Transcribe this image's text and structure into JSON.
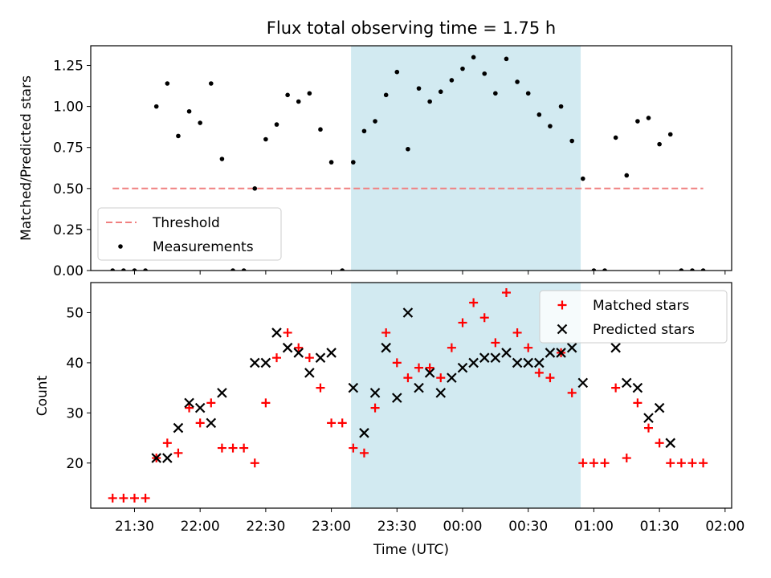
{
  "figure_title": "Flux total observing time = 1.75 h",
  "colors": {
    "shade": "#add8e6",
    "threshold": "#f08080",
    "measure": "#000000",
    "matched": "#ff0000",
    "predicted": "#000000"
  },
  "chart_data": [
    {
      "type": "scatter",
      "title": "Flux total observing time = 1.75 h",
      "xlabel": "",
      "ylabel": "Matched/Predicted stars",
      "ylim": [
        0,
        1.37
      ],
      "xlim": [
        "21:10",
        "02:03"
      ],
      "shaded_interval": [
        "23:09",
        "00:54"
      ],
      "yticks": [
        "0.00",
        "0.25",
        "0.50",
        "0.75",
        "1.00",
        "1.25"
      ],
      "threshold": {
        "name": "Threshold",
        "value": 0.5,
        "x_range": [
          "21:20",
          "01:50"
        ]
      },
      "legend": {
        "position": "lower-left",
        "entries": [
          "Threshold",
          "Measurements"
        ]
      },
      "series": [
        {
          "name": "Measurements",
          "points": [
            [
              "21:20",
              0
            ],
            [
              "21:25",
              0
            ],
            [
              "21:30",
              0
            ],
            [
              "21:35",
              0
            ],
            [
              "21:40",
              1.0
            ],
            [
              "21:45",
              1.14
            ],
            [
              "21:50",
              0.82
            ],
            [
              "21:55",
              0.97
            ],
            [
              "22:00",
              0.9
            ],
            [
              "22:05",
              1.14
            ],
            [
              "22:10",
              0.68
            ],
            [
              "22:15",
              0
            ],
            [
              "22:20",
              0
            ],
            [
              "22:25",
              0.5
            ],
            [
              "22:30",
              0.8
            ],
            [
              "22:35",
              0.89
            ],
            [
              "22:40",
              1.07
            ],
            [
              "22:45",
              1.03
            ],
            [
              "22:50",
              1.08
            ],
            [
              "22:55",
              0.86
            ],
            [
              "23:00",
              0.66
            ],
            [
              "23:05",
              0
            ],
            [
              "23:10",
              0.66
            ],
            [
              "23:15",
              0.85
            ],
            [
              "23:20",
              0.91
            ],
            [
              "23:25",
              1.07
            ],
            [
              "23:30",
              1.21
            ],
            [
              "23:35",
              0.74
            ],
            [
              "23:40",
              1.11
            ],
            [
              "23:45",
              1.03
            ],
            [
              "23:50",
              1.09
            ],
            [
              "23:55",
              1.16
            ],
            [
              "00:00",
              1.23
            ],
            [
              "00:05",
              1.3
            ],
            [
              "00:10",
              1.2
            ],
            [
              "00:15",
              1.08
            ],
            [
              "00:20",
              1.29
            ],
            [
              "00:25",
              1.15
            ],
            [
              "00:30",
              1.08
            ],
            [
              "00:35",
              0.95
            ],
            [
              "00:40",
              0.88
            ],
            [
              "00:45",
              1.0
            ],
            [
              "00:50",
              0.79
            ],
            [
              "00:55",
              0.56
            ],
            [
              "01:00",
              0
            ],
            [
              "01:05",
              0
            ],
            [
              "01:10",
              0.81
            ],
            [
              "01:15",
              0.58
            ],
            [
              "01:20",
              0.91
            ],
            [
              "01:25",
              0.93
            ],
            [
              "01:30",
              0.77
            ],
            [
              "01:35",
              0.83
            ],
            [
              "01:40",
              0
            ],
            [
              "01:45",
              0
            ],
            [
              "01:50",
              0
            ]
          ]
        }
      ]
    },
    {
      "type": "scatter",
      "xlabel": "Time (UTC)",
      "ylabel": "Count",
      "ylim": [
        11,
        56
      ],
      "xlim": [
        "21:10",
        "02:03"
      ],
      "shaded_interval": [
        "23:09",
        "00:54"
      ],
      "yticks": [
        "20",
        "30",
        "40",
        "50"
      ],
      "xticks": [
        "21:30",
        "22:00",
        "22:30",
        "23:00",
        "23:30",
        "00:00",
        "00:30",
        "01:00",
        "01:30",
        "02:00"
      ],
      "legend": {
        "position": "top-right",
        "entries": [
          "Matched stars",
          "Predicted stars"
        ]
      },
      "series": [
        {
          "name": "Matched stars",
          "marker": "plus",
          "points": [
            [
              "21:20",
              13
            ],
            [
              "21:25",
              13
            ],
            [
              "21:30",
              13
            ],
            [
              "21:35",
              13
            ],
            [
              "21:40",
              21
            ],
            [
              "21:45",
              24
            ],
            [
              "21:50",
              22
            ],
            [
              "21:55",
              31
            ],
            [
              "22:00",
              28
            ],
            [
              "22:05",
              32
            ],
            [
              "22:10",
              23
            ],
            [
              "22:15",
              23
            ],
            [
              "22:20",
              23
            ],
            [
              "22:25",
              20
            ],
            [
              "22:30",
              32
            ],
            [
              "22:35",
              41
            ],
            [
              "22:40",
              46
            ],
            [
              "22:45",
              43
            ],
            [
              "22:50",
              41
            ],
            [
              "22:55",
              35
            ],
            [
              "23:00",
              28
            ],
            [
              "23:05",
              28
            ],
            [
              "23:10",
              23
            ],
            [
              "23:15",
              22
            ],
            [
              "23:20",
              31
            ],
            [
              "23:25",
              46
            ],
            [
              "23:30",
              40
            ],
            [
              "23:35",
              37
            ],
            [
              "23:40",
              39
            ],
            [
              "23:45",
              39
            ],
            [
              "23:50",
              37
            ],
            [
              "23:55",
              43
            ],
            [
              "00:00",
              48
            ],
            [
              "00:05",
              52
            ],
            [
              "00:10",
              49
            ],
            [
              "00:15",
              44
            ],
            [
              "00:20",
              54
            ],
            [
              "00:25",
              46
            ],
            [
              "00:30",
              43
            ],
            [
              "00:35",
              38
            ],
            [
              "00:40",
              37
            ],
            [
              "00:45",
              42
            ],
            [
              "00:50",
              34
            ],
            [
              "00:55",
              20
            ],
            [
              "01:00",
              20
            ],
            [
              "01:05",
              20
            ],
            [
              "01:10",
              35
            ],
            [
              "01:15",
              21
            ],
            [
              "01:20",
              32
            ],
            [
              "01:25",
              27
            ],
            [
              "01:30",
              24
            ],
            [
              "01:35",
              20
            ],
            [
              "01:40",
              20
            ],
            [
              "01:45",
              20
            ],
            [
              "01:50",
              20
            ]
          ]
        },
        {
          "name": "Predicted stars",
          "marker": "x",
          "points": [
            [
              "21:40",
              21
            ],
            [
              "21:45",
              21
            ],
            [
              "21:50",
              27
            ],
            [
              "21:55",
              32
            ],
            [
              "22:00",
              31
            ],
            [
              "22:05",
              28
            ],
            [
              "22:10",
              34
            ],
            [
              "22:25",
              40
            ],
            [
              "22:30",
              40
            ],
            [
              "22:35",
              46
            ],
            [
              "22:40",
              43
            ],
            [
              "22:45",
              42
            ],
            [
              "22:50",
              38
            ],
            [
              "22:55",
              41
            ],
            [
              "23:00",
              42
            ],
            [
              "23:10",
              35
            ],
            [
              "23:15",
              26
            ],
            [
              "23:20",
              34
            ],
            [
              "23:25",
              43
            ],
            [
              "23:30",
              33
            ],
            [
              "23:35",
              50
            ],
            [
              "23:40",
              35
            ],
            [
              "23:45",
              38
            ],
            [
              "23:50",
              34
            ],
            [
              "23:55",
              37
            ],
            [
              "00:00",
              39
            ],
            [
              "00:05",
              40
            ],
            [
              "00:10",
              41
            ],
            [
              "00:15",
              41
            ],
            [
              "00:20",
              42
            ],
            [
              "00:25",
              40
            ],
            [
              "00:30",
              40
            ],
            [
              "00:35",
              40
            ],
            [
              "00:40",
              42
            ],
            [
              "00:45",
              42
            ],
            [
              "00:50",
              43
            ],
            [
              "00:55",
              36
            ],
            [
              "01:10",
              43
            ],
            [
              "01:15",
              36
            ],
            [
              "01:20",
              35
            ],
            [
              "01:25",
              29
            ],
            [
              "01:30",
              31
            ],
            [
              "01:35",
              24
            ]
          ]
        }
      ]
    }
  ]
}
